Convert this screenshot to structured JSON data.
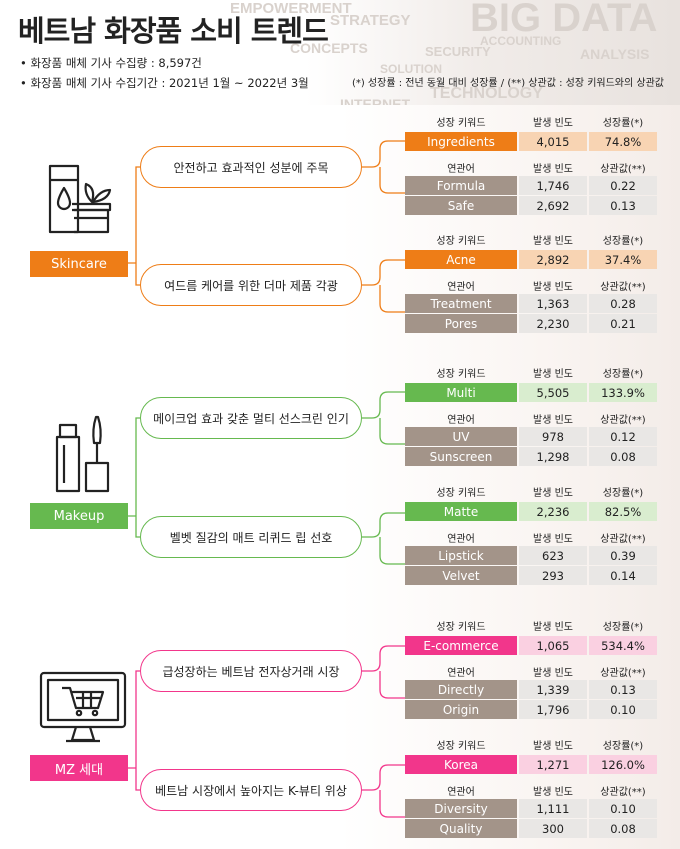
{
  "title": "베트남 화장품 소비 트렌드",
  "info": [
    "• 화장품 매체 기사 수집량 : 8,597건",
    "• 화장품 매체 기사 수집기간 : 2021년 1월 ~ 2022년 3월"
  ],
  "note": "(*) 성장률 : 전년 동월 대비 성장률 / (**) 상관값 : 성장 키워드와의 상관값",
  "background_words": [
    "EMPOWERMENT",
    "STRATEGY",
    "CONCEPTS",
    "BIG DATA",
    "ACCOUNTING",
    "SECURITY",
    "SOLUTION",
    "ANALYSIS",
    "TECHNOLOGY",
    "INTERNET"
  ],
  "headers": {
    "growth_keyword": "성장 키워드",
    "frequency": "발생 빈도",
    "growth_rate": "성장률(*)",
    "related": "연관어",
    "correlation": "상관값(**)"
  },
  "colors": {
    "skincare": "#ee7d17",
    "skincare_light": "#f8d4b3",
    "makeup": "#66b94f",
    "makeup_light": "#d9edcf",
    "mz": "#f2368b",
    "mz_light": "#fad0e1",
    "sub_keyword": "#a39489",
    "sub_value": "#e9e7e5"
  },
  "categories": [
    {
      "label": "Skincare",
      "icon": "skincare-bottle-icon",
      "trends": [
        {
          "bubble": "안전하고 효과적인 성분에 주목",
          "keyword": {
            "name": "Ingredients",
            "freq": "4,015",
            "rate": "74.8%"
          },
          "related": [
            {
              "name": "Formula",
              "freq": "1,746",
              "corr": "0.22"
            },
            {
              "name": "Safe",
              "freq": "2,692",
              "corr": "0.13"
            }
          ]
        },
        {
          "bubble": "여드름 케어를 위한 더마 제품 각광",
          "keyword": {
            "name": "Acne",
            "freq": "2,892",
            "rate": "37.4%"
          },
          "related": [
            {
              "name": "Treatment",
              "freq": "1,363",
              "corr": "0.28"
            },
            {
              "name": "Pores",
              "freq": "2,230",
              "corr": "0.21"
            }
          ]
        }
      ]
    },
    {
      "label": "Makeup",
      "icon": "makeup-brush-icon",
      "trends": [
        {
          "bubble": "메이크업 효과 갖춘 멀티 선스크린 인기",
          "keyword": {
            "name": "Multi",
            "freq": "5,505",
            "rate": "133.9%"
          },
          "related": [
            {
              "name": "UV",
              "freq": "978",
              "corr": "0.12"
            },
            {
              "name": "Sunscreen",
              "freq": "1,298",
              "corr": "0.08"
            }
          ]
        },
        {
          "bubble": "벨벳 질감의 매트 리퀴드 립 선호",
          "keyword": {
            "name": "Matte",
            "freq": "2,236",
            "rate": "82.5%"
          },
          "related": [
            {
              "name": "Lipstick",
              "freq": "623",
              "corr": "0.39"
            },
            {
              "name": "Velvet",
              "freq": "293",
              "corr": "0.14"
            }
          ]
        }
      ]
    },
    {
      "label": "MZ 세대",
      "icon": "shopping-cart-monitor-icon",
      "trends": [
        {
          "bubble": "급성장하는 베트남 전자상거래 시장",
          "keyword": {
            "name": "E-commerce",
            "freq": "1,065",
            "rate": "534.4%"
          },
          "related": [
            {
              "name": "Directly",
              "freq": "1,339",
              "corr": "0.13"
            },
            {
              "name": "Origin",
              "freq": "1,796",
              "corr": "0.10"
            }
          ]
        },
        {
          "bubble": "베트남 시장에서 높아지는 K-뷰티 위상",
          "keyword": {
            "name": "Korea",
            "freq": "1,271",
            "rate": "126.0%"
          },
          "related": [
            {
              "name": "Diversity",
              "freq": "1,111",
              "corr": "0.10"
            },
            {
              "name": "Quality",
              "freq": "300",
              "corr": "0.08"
            }
          ]
        }
      ]
    }
  ]
}
